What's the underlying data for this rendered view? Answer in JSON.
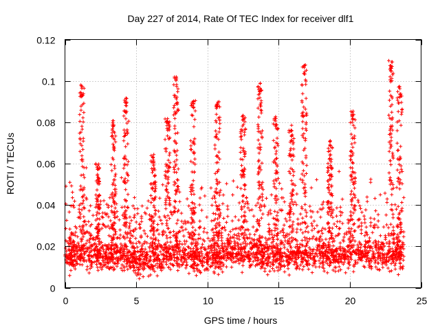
{
  "chart_data": {
    "type": "scatter",
    "title": "Day 227 of 2014, Rate Of TEC Index for receiver dlf1",
    "xlabel": "GPS time / hours",
    "ylabel": "ROTI / TECUs",
    "xlim": [
      0,
      25
    ],
    "ylim": [
      0,
      0.12
    ],
    "xticks": [
      0,
      5,
      10,
      15,
      20,
      25
    ],
    "yticks": [
      0,
      0.02,
      0.04,
      0.06,
      0.08,
      0.1,
      0.12
    ],
    "xtick_labels": [
      "0",
      "5",
      "10",
      "15",
      "20",
      "25"
    ],
    "ytick_labels": [
      "0",
      "0.02",
      "0.04",
      "0.06",
      "0.08",
      "0.1",
      "0.12"
    ],
    "grid": true,
    "marker": "+",
    "color": "#ff0000",
    "series": [
      {
        "name": "ROTI",
        "baseline": [
          [
            0,
            0.013
          ],
          [
            1,
            0.014
          ],
          [
            2,
            0.014
          ],
          [
            3,
            0.013
          ],
          [
            4,
            0.014
          ],
          [
            5,
            0.011
          ],
          [
            6,
            0.012
          ],
          [
            7,
            0.014
          ],
          [
            8,
            0.014
          ],
          [
            9,
            0.013
          ],
          [
            10,
            0.012
          ],
          [
            11,
            0.014
          ],
          [
            12,
            0.015
          ],
          [
            13,
            0.015
          ],
          [
            14,
            0.014
          ],
          [
            15,
            0.013
          ],
          [
            16,
            0.014
          ],
          [
            17,
            0.014
          ],
          [
            18,
            0.014
          ],
          [
            19,
            0.013
          ],
          [
            20,
            0.014
          ],
          [
            21,
            0.015
          ],
          [
            22,
            0.014
          ],
          [
            23,
            0.014
          ],
          [
            23.8,
            0.014
          ]
        ],
        "peaks": [
          [
            1.2,
            0.098
          ],
          [
            2.3,
            0.06
          ],
          [
            3.4,
            0.081
          ],
          [
            4.3,
            0.092
          ],
          [
            6.2,
            0.065
          ],
          [
            7.2,
            0.082
          ],
          [
            7.8,
            0.102
          ],
          [
            9.0,
            0.092
          ],
          [
            10.7,
            0.09
          ],
          [
            12.5,
            0.084
          ],
          [
            13.7,
            0.099
          ],
          [
            14.8,
            0.084
          ],
          [
            15.9,
            0.079
          ],
          [
            16.8,
            0.108
          ],
          [
            18.6,
            0.072
          ],
          [
            20.2,
            0.086
          ],
          [
            22.9,
            0.11
          ],
          [
            23.5,
            0.098
          ]
        ]
      }
    ]
  }
}
